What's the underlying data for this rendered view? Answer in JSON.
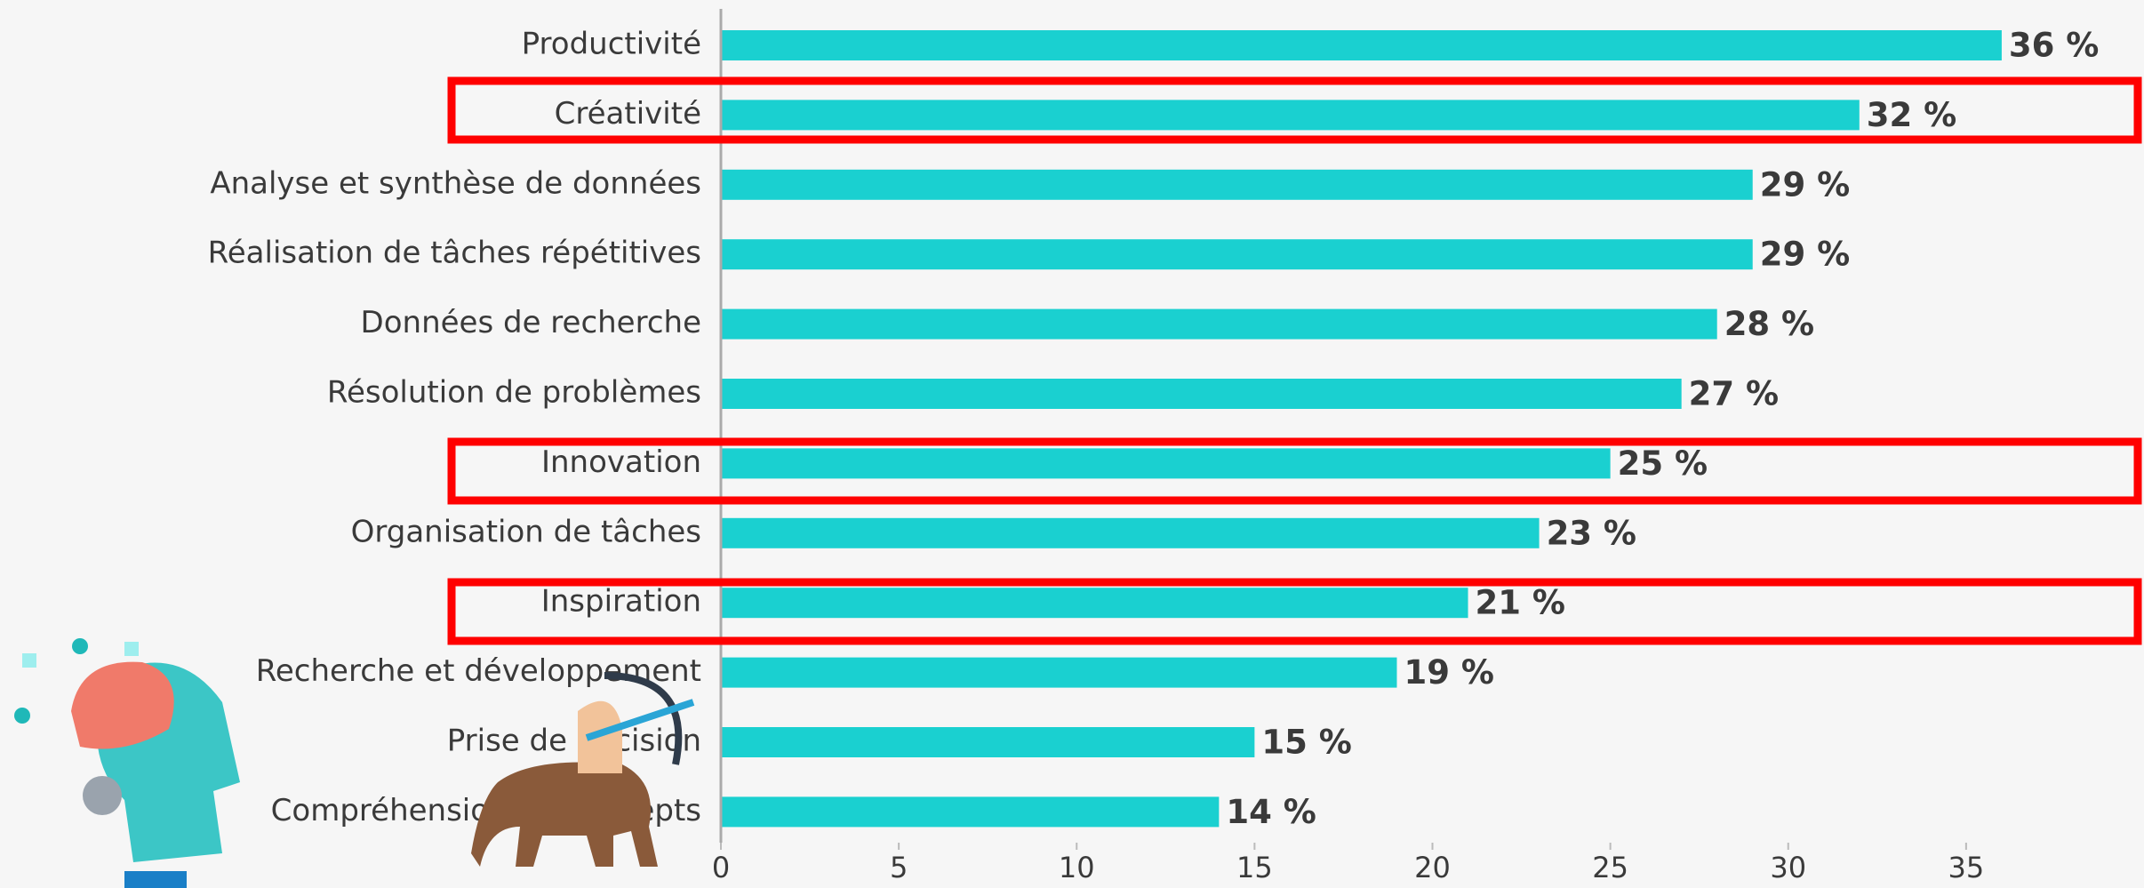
{
  "chart_data": {
    "type": "bar",
    "orientation": "horizontal",
    "categories": [
      "Productivité",
      "Créativité",
      "Analyse et synthèse de données",
      "Réalisation de tâches répétitives",
      "Données de recherche",
      "Résolution de problèmes",
      "Innovation",
      "Organisation de tâches",
      "Inspiration",
      "Recherche et développement",
      "Prise de décision",
      "Compréhension de concepts"
    ],
    "values": [
      36,
      32,
      29,
      29,
      28,
      27,
      25,
      23,
      21,
      19,
      15,
      14
    ],
    "value_labels": [
      "36 %",
      "32 %",
      "29 %",
      "29 %",
      "28 %",
      "27 %",
      "25 %",
      "23 %",
      "21 %",
      "19 %",
      "15 %",
      "14 %"
    ],
    "color": "#1ad0d0",
    "xlim": [
      0,
      40
    ],
    "xticks": [
      0,
      5,
      10,
      15,
      20,
      25,
      30,
      35
    ],
    "grid": false
  }
}
